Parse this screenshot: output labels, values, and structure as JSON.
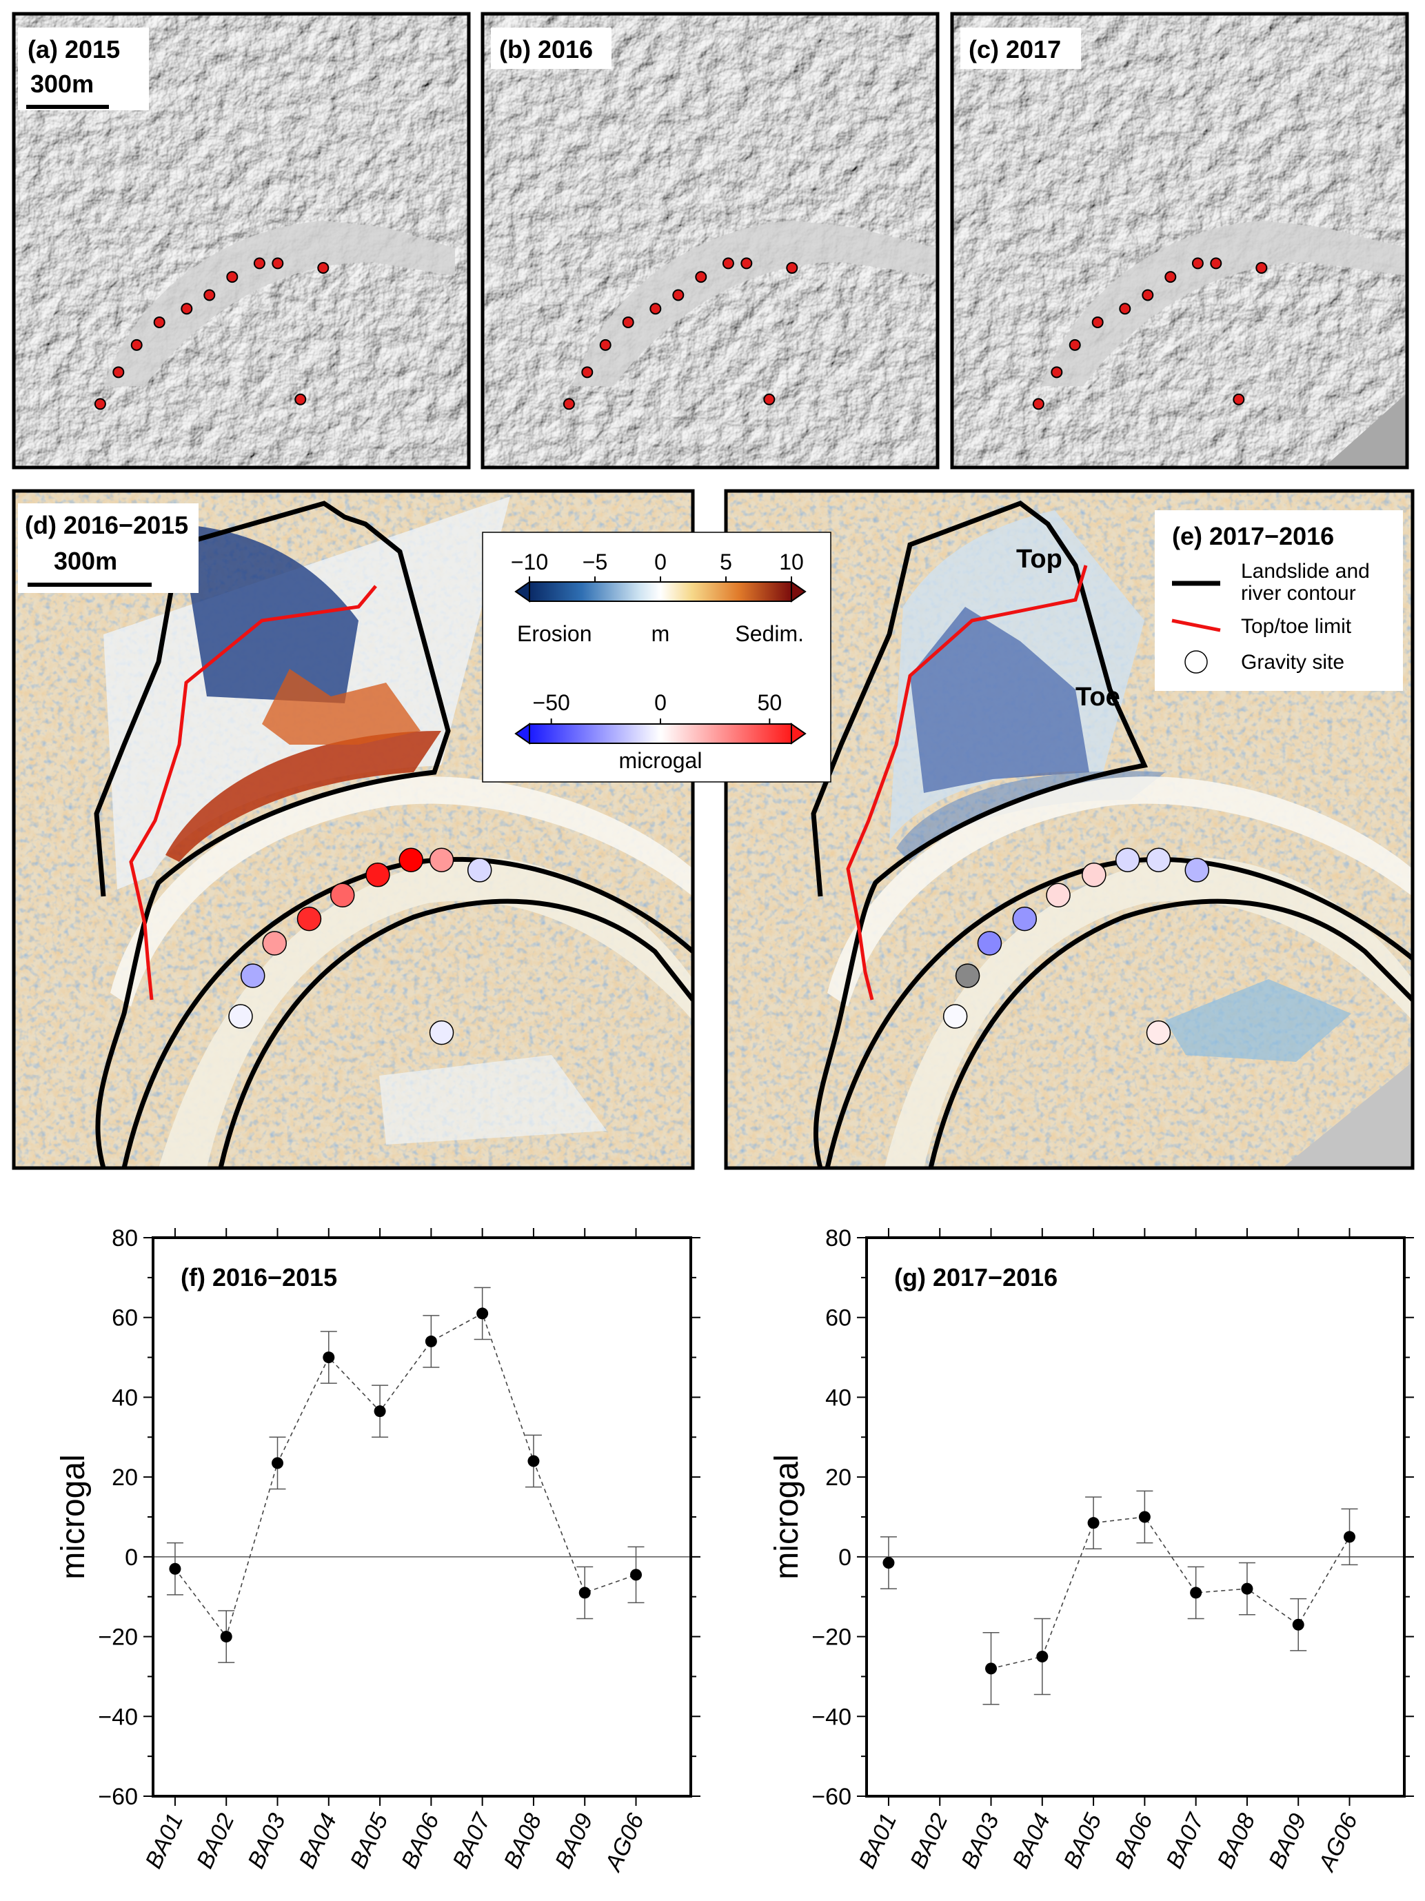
{
  "maps": {
    "panel_a": {
      "label": "(a) 2015",
      "scale": "300m"
    },
    "panel_b": {
      "label": "(b) 2016"
    },
    "panel_c": {
      "label": "(c) 2017"
    },
    "panel_d": {
      "label": "(d) 2016−2015",
      "scale": "300m"
    },
    "panel_e": {
      "label": "(e) 2017−2016",
      "top": "Top",
      "toe": "Toe"
    },
    "colorbar_m": {
      "ticks": [
        "−10",
        "−5",
        "0",
        "5",
        "10"
      ],
      "left": "Erosion",
      "unit": "m",
      "right": "Sedim."
    },
    "colorbar_gal": {
      "ticks": [
        "−50",
        "0",
        "50"
      ],
      "unit": "microgal"
    },
    "legend": {
      "contour": "Landslide and",
      "contour2": "river contour",
      "limit": "Top/toe limit",
      "site": "Gravity site"
    },
    "colors": {
      "contour": "#000000",
      "limit": "#ee1111",
      "site_red": "#e01a1a"
    }
  },
  "chart_data": [
    {
      "type": "scatter",
      "title": "(f) 2016−2015",
      "ylabel": "microgal",
      "ylim": [
        -60,
        80
      ],
      "yticks": [
        "80",
        "60",
        "40",
        "20",
        "0",
        "−20",
        "−40",
        "−60"
      ],
      "categories": [
        "BA01",
        "BA02",
        "BA03",
        "BA04",
        "BA05",
        "BA06",
        "BA07",
        "BA08",
        "BA09",
        "AG06"
      ],
      "values": [
        -3,
        -20,
        23.5,
        50,
        36.5,
        54,
        61,
        24,
        -9,
        -4.5
      ],
      "errors": [
        6.5,
        6.5,
        6.5,
        6.5,
        6.5,
        6.5,
        6.5,
        6.5,
        6.5,
        7
      ]
    },
    {
      "type": "scatter",
      "title": "(g) 2017−2016",
      "ylabel": "microgal",
      "ylim": [
        -60,
        80
      ],
      "yticks": [
        "80",
        "60",
        "40",
        "20",
        "0",
        "−20",
        "−40",
        "−60"
      ],
      "categories": [
        "BA01",
        "BA02",
        "BA03",
        "BA04",
        "BA05",
        "BA06",
        "BA07",
        "BA08",
        "BA09",
        "AG06"
      ],
      "values": [
        -1.5,
        null,
        -28,
        -25,
        8.5,
        10,
        -9,
        -8,
        -17,
        5
      ],
      "errors": [
        6.5,
        null,
        9,
        9.5,
        6.5,
        6.5,
        6.5,
        6.5,
        6.5,
        7
      ]
    }
  ]
}
